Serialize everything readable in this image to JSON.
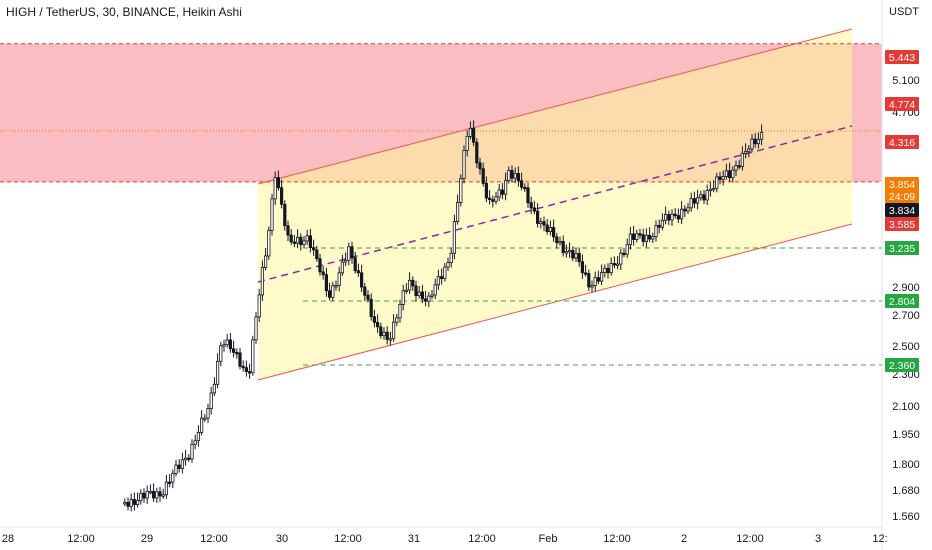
{
  "header": {
    "title": "HIGH / TetherUS, 30, BINANCE, Heikin Ashi"
  },
  "currency": "USDT",
  "price_axis_ticks": [
    "5.100",
    "4.700",
    "2.900",
    "2.700",
    "2.500",
    "2.300",
    "2.100",
    "1.950",
    "1.800",
    "1.680",
    "1.560"
  ],
  "time_axis_ticks": [
    "28",
    "12:00",
    "29",
    "12:00",
    "30",
    "12:00",
    "31",
    "12:00",
    "Feb",
    "12:00",
    "2",
    "12:00",
    "3",
    "12:"
  ],
  "level_labels": [
    {
      "value": "5.443",
      "color": "#e53935"
    },
    {
      "value": "4.774",
      "color": "#e53935"
    },
    {
      "value": "4.316",
      "color": "#e53935"
    },
    {
      "value": "3.854",
      "color": "#f57c00"
    },
    {
      "value": "24:09",
      "color": "#f57c00"
    },
    {
      "value": "3.834",
      "color": "#131722"
    },
    {
      "value": "3.585",
      "color": "#e53935"
    },
    {
      "value": "3.235",
      "color": "#26a641"
    },
    {
      "value": "2.804",
      "color": "#26a641"
    },
    {
      "value": "2.360",
      "color": "#26a641"
    }
  ],
  "chart_data": {
    "type": "candlestick",
    "symbol": "HIGH / TetherUS",
    "interval": "30",
    "exchange": "BINANCE",
    "style": "Heikin Ashi",
    "y_unit": "USDT",
    "resistance_levels": [
      5.443,
      4.774
    ],
    "resistance_zone": [
      3.585,
      4.316
    ],
    "support_levels": [
      3.235,
      2.804,
      2.36
    ],
    "current_price": 3.834,
    "last_close": 3.854,
    "countdown": "24:09",
    "ascending_channel": true,
    "price_path_x_day": [
      28.8,
      29.1,
      29.3,
      29.45,
      29.55,
      29.65,
      29.75,
      29.85,
      29.95,
      30.05,
      30.2,
      30.35,
      30.5,
      30.6,
      30.7,
      30.8,
      30.95,
      31.1,
      31.25,
      31.4,
      31.55,
      31.65,
      31.7,
      31.8,
      31.95,
      32.1,
      32.2,
      32.3,
      32.45,
      32.6,
      32.75,
      32.9,
      33.05,
      33.2,
      33.35,
      33.45,
      33.55,
      33.6
    ],
    "price_path_close": [
      1.4,
      1.48,
      1.75,
      2.05,
      2.55,
      2.42,
      2.3,
      3.0,
      3.65,
      3.25,
      3.3,
      2.85,
      3.2,
      2.95,
      2.6,
      2.55,
      2.95,
      2.8,
      3.15,
      3.9,
      3.45,
      3.55,
      3.65,
      3.55,
      3.35,
      3.25,
      3.15,
      2.95,
      3.05,
      3.28,
      3.3,
      3.4,
      3.45,
      3.55,
      3.63,
      3.72,
      3.8,
      3.85
    ]
  }
}
